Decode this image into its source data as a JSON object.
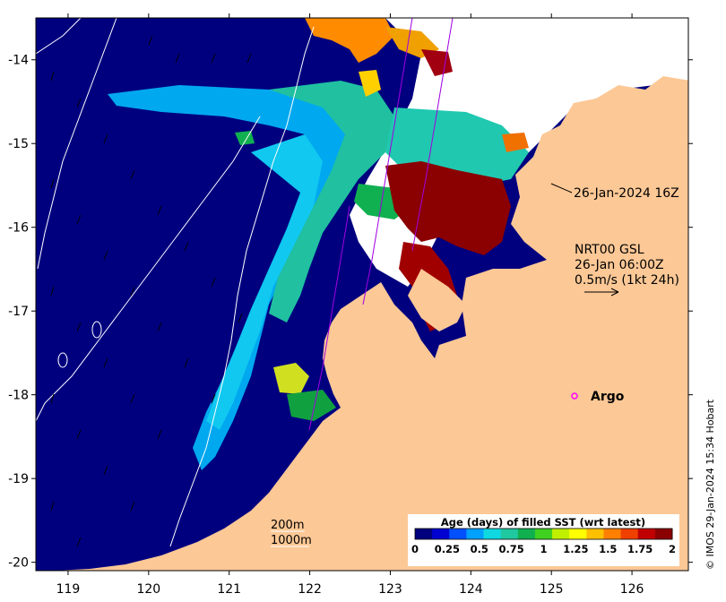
{
  "map": {
    "lon_ticks": [
      "119",
      "120",
      "121",
      "122",
      "123",
      "124",
      "125",
      "126"
    ],
    "lat_ticks": [
      "-14",
      "-15",
      "-16",
      "-17",
      "-18",
      "-19",
      "-20"
    ],
    "lon_range": [
      118.6,
      126.7
    ],
    "lat_range": [
      -20.1,
      -13.5
    ]
  },
  "annotations": {
    "track_time": "26-Jan-2024 16Z",
    "model_line1": "NRT00 GSL",
    "model_line2": "26-Jan 06:00Z",
    "model_line3": "0.5m/s (1kt 24h)",
    "argo_label": "Argo",
    "contour_200": "200m",
    "contour_1000": "1000m"
  },
  "colorbar": {
    "title": "Age (days) of filled SST (wrt latest)",
    "ticks": [
      "0",
      "0.25",
      "0.5",
      "0.75",
      "1",
      "1.25",
      "1.5",
      "1.75",
      "2"
    ],
    "colors": [
      "#00007f",
      "#0000d0",
      "#0050ff",
      "#00a0ff",
      "#10d8e0",
      "#20c8a0",
      "#10b050",
      "#40d020",
      "#c0f000",
      "#ffff00",
      "#ffc000",
      "#ff8000",
      "#f04000",
      "#c00000",
      "#8b0000"
    ]
  },
  "credit": "© IMOS 29-Jan-2024 15:34 Hobart",
  "colors": {
    "ocean": "#00007f",
    "land": "#fcc896",
    "missing": "#ffffff",
    "argo": "#ff00ff"
  }
}
